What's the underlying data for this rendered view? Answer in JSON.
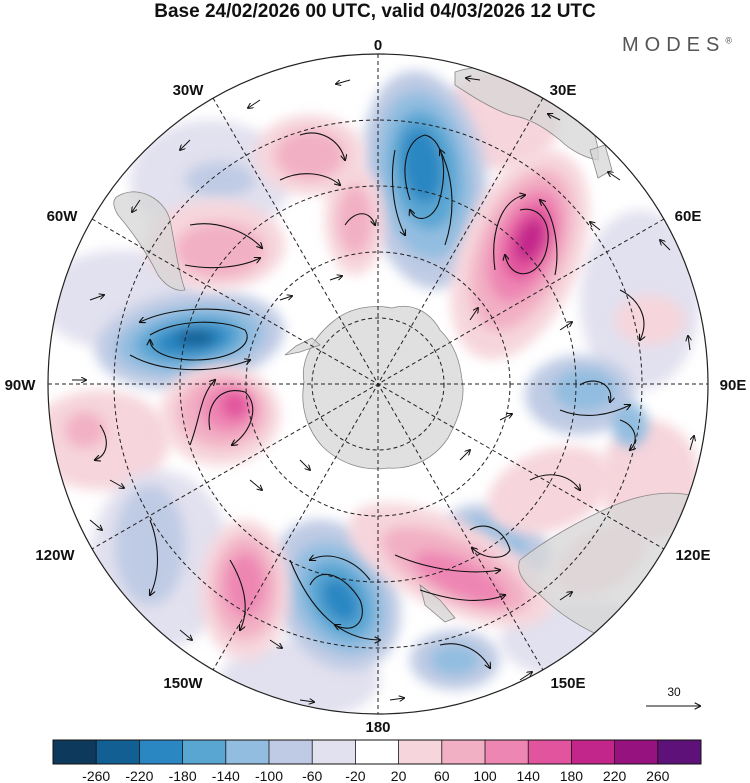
{
  "title": "Base 24/02/2026 00 UTC, valid 04/03/2026 12 UTC",
  "logo": "MODES",
  "logo_mark": "®",
  "longitude_labels": {
    "lon_0": "0",
    "lon_30e": "30E",
    "lon_60e": "60E",
    "lon_90e": "90E",
    "lon_120e": "120E",
    "lon_150e": "150E",
    "lon_180": "180",
    "lon_150w": "150W",
    "lon_120w": "120W",
    "lon_90w": "90W",
    "lon_60w": "60W",
    "lon_30w": "30W"
  },
  "reference_vector": {
    "label": "30"
  },
  "colorbar": {
    "ticks": [
      "-260",
      "-220",
      "-180",
      "-140",
      "-100",
      "-60",
      "-20",
      "20",
      "60",
      "100",
      "140",
      "180",
      "220",
      "260"
    ],
    "colors": [
      "#0d3a5c",
      "#125f94",
      "#2a87c2",
      "#5aa6d3",
      "#93bde0",
      "#bfcbe4",
      "#e2e1ef",
      "#ffffff",
      "#f6d5dc",
      "#f2b0c5",
      "#ee86b3",
      "#e2559e",
      "#c2268b",
      "#96137f",
      "#5e1178"
    ]
  },
  "map_data": {
    "projection": "south-polar-stereographic",
    "field": "geopotential height anomaly",
    "anomalies": [
      {
        "sign": "negative",
        "level": -180,
        "near": "20E"
      },
      {
        "sign": "positive",
        "level": 220,
        "near": "45E"
      },
      {
        "sign": "negative",
        "level": -200,
        "near": "70W"
      },
      {
        "sign": "positive",
        "level": 160,
        "near": "100W"
      },
      {
        "sign": "negative",
        "level": -180,
        "near": "170W"
      },
      {
        "sign": "positive",
        "level": 140,
        "near": "145W"
      },
      {
        "sign": "positive",
        "level": 160,
        "near": "150E"
      },
      {
        "sign": "negative",
        "level": -100,
        "near": "130E"
      },
      {
        "sign": "negative",
        "level": -100,
        "near": "95E"
      },
      {
        "sign": "positive",
        "level": 100,
        "near": "35W"
      },
      {
        "sign": "positive",
        "level": 100,
        "near": "55W"
      }
    ]
  }
}
